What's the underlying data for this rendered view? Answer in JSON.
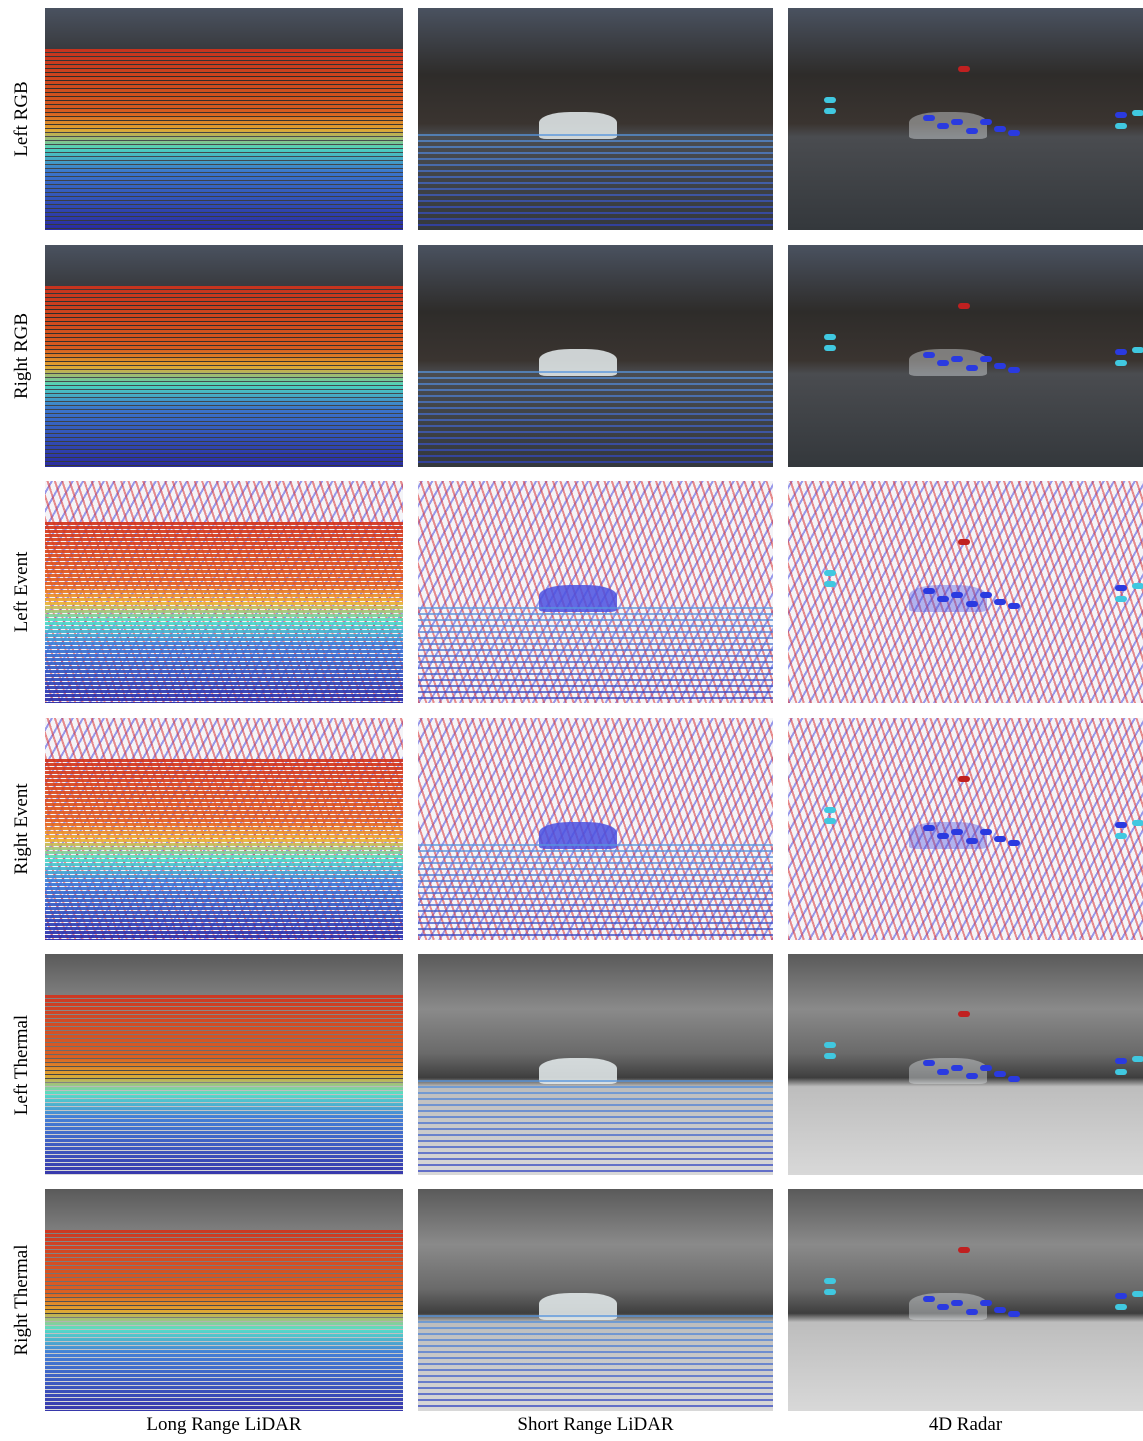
{
  "row_labels": [
    "Left RGB",
    "Right RGB",
    "Left Event",
    "Right Event",
    "Left Thermal",
    "Right Thermal"
  ],
  "column_labels": [
    "Long Range LiDAR",
    "Short Range LiDAR",
    "4D Radar"
  ]
}
